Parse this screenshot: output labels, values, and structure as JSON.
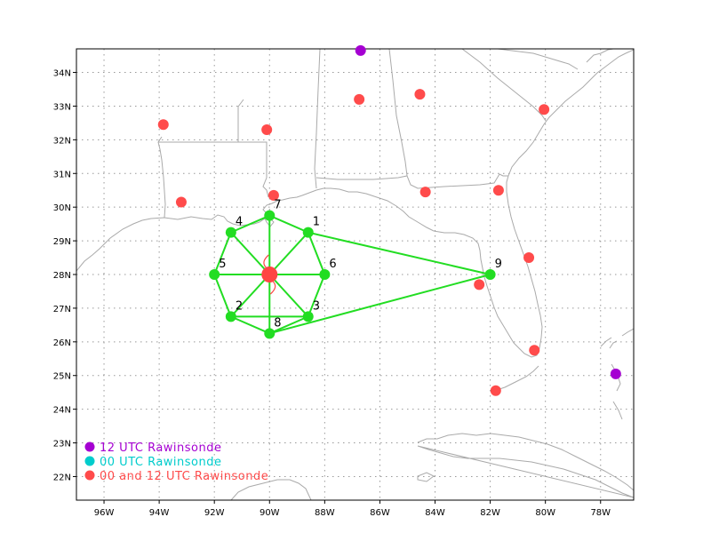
{
  "map": {
    "lon_range": [
      -97,
      -76.8
    ],
    "lat_range": [
      21.3,
      34.7
    ],
    "x_ticks": [
      {
        "lon": -96,
        "label": "96W"
      },
      {
        "lon": -94,
        "label": "94W"
      },
      {
        "lon": -92,
        "label": "92W"
      },
      {
        "lon": -90,
        "label": "90W"
      },
      {
        "lon": -88,
        "label": "88W"
      },
      {
        "lon": -86,
        "label": "86W"
      },
      {
        "lon": -84,
        "label": "84W"
      },
      {
        "lon": -82,
        "label": "82W"
      },
      {
        "lon": -80,
        "label": "80W"
      },
      {
        "lon": -78,
        "label": "78W"
      }
    ],
    "y_ticks": [
      {
        "lat": 22,
        "label": "22N"
      },
      {
        "lat": 23,
        "label": "23N"
      },
      {
        "lat": 24,
        "label": "24N"
      },
      {
        "lat": 25,
        "label": "25N"
      },
      {
        "lat": 26,
        "label": "26N"
      },
      {
        "lat": 27,
        "label": "27N"
      },
      {
        "lat": 28,
        "label": "28N"
      },
      {
        "lat": 29,
        "label": "29N"
      },
      {
        "lat": 30,
        "label": "30N"
      },
      {
        "lat": 31,
        "label": "31N"
      },
      {
        "lat": 32,
        "label": "32N"
      },
      {
        "lat": 33,
        "label": "33N"
      },
      {
        "lat": 34,
        "label": "34N"
      }
    ],
    "grid": "dotted",
    "colors": {
      "land_lines": "#aaaaaa",
      "grid": "#999999",
      "network": "#22dd22",
      "center": "#ff4444",
      "stn_00_12": "#ff4b4b",
      "stn_12": "#a500d2",
      "stn_00": "#00cccc"
    }
  },
  "network_points": [
    {
      "id": "1",
      "lon": -88.6,
      "lat": 29.25
    },
    {
      "id": "2",
      "lon": -91.4,
      "lat": 26.75
    },
    {
      "id": "3",
      "lon": -88.6,
      "lat": 26.75
    },
    {
      "id": "4",
      "lon": -91.4,
      "lat": 29.25
    },
    {
      "id": "5",
      "lon": -92.0,
      "lat": 28.0
    },
    {
      "id": "6",
      "lon": -88.0,
      "lat": 28.0
    },
    {
      "id": "7",
      "lon": -90.0,
      "lat": 29.75
    },
    {
      "id": "8",
      "lon": -90.0,
      "lat": 26.25
    },
    {
      "id": "9",
      "lon": -82.0,
      "lat": 28.0
    }
  ],
  "network_edges": [
    [
      "4",
      "5"
    ],
    [
      "5",
      "2"
    ],
    [
      "2",
      "3"
    ],
    [
      "3",
      "6"
    ],
    [
      "6",
      "1"
    ],
    [
      "1",
      "7"
    ],
    [
      "7",
      "4"
    ],
    [
      "2",
      "8"
    ],
    [
      "8",
      "3"
    ],
    [
      "7",
      "8"
    ],
    [
      "1",
      "9"
    ],
    [
      "8",
      "9"
    ],
    [
      "C",
      "4"
    ],
    [
      "C",
      "1"
    ],
    [
      "C",
      "2"
    ],
    [
      "C",
      "3"
    ],
    [
      "C",
      "5"
    ],
    [
      "C",
      "6"
    ]
  ],
  "center": {
    "lon": -90.0,
    "lat": 28.0
  },
  "stations_00_12": [
    {
      "lon": -93.85,
      "lat": 32.45
    },
    {
      "lon": -90.1,
      "lat": 32.3
    },
    {
      "lon": -86.75,
      "lat": 33.2
    },
    {
      "lon": -84.55,
      "lat": 33.35
    },
    {
      "lon": -80.05,
      "lat": 32.9
    },
    {
      "lon": -93.2,
      "lat": 30.15
    },
    {
      "lon": -89.85,
      "lat": 30.35
    },
    {
      "lon": -84.35,
      "lat": 30.45
    },
    {
      "lon": -81.7,
      "lat": 30.5
    },
    {
      "lon": -80.6,
      "lat": 28.5
    },
    {
      "lon": -82.4,
      "lat": 27.7
    },
    {
      "lon": -80.4,
      "lat": 25.75
    },
    {
      "lon": -81.8,
      "lat": 24.55
    }
  ],
  "stations_12": [
    {
      "lon": -86.7,
      "lat": 34.65
    },
    {
      "lon": -77.45,
      "lat": 25.05
    }
  ],
  "legend": [
    {
      "color": "#a500d2",
      "label": "12 UTC Rawinsonde"
    },
    {
      "color": "#00cccc",
      "label": "00 UTC Rawinsonde"
    },
    {
      "color": "#ff4b4b",
      "label": "00 and 12 UTC Rawinsonde"
    }
  ]
}
